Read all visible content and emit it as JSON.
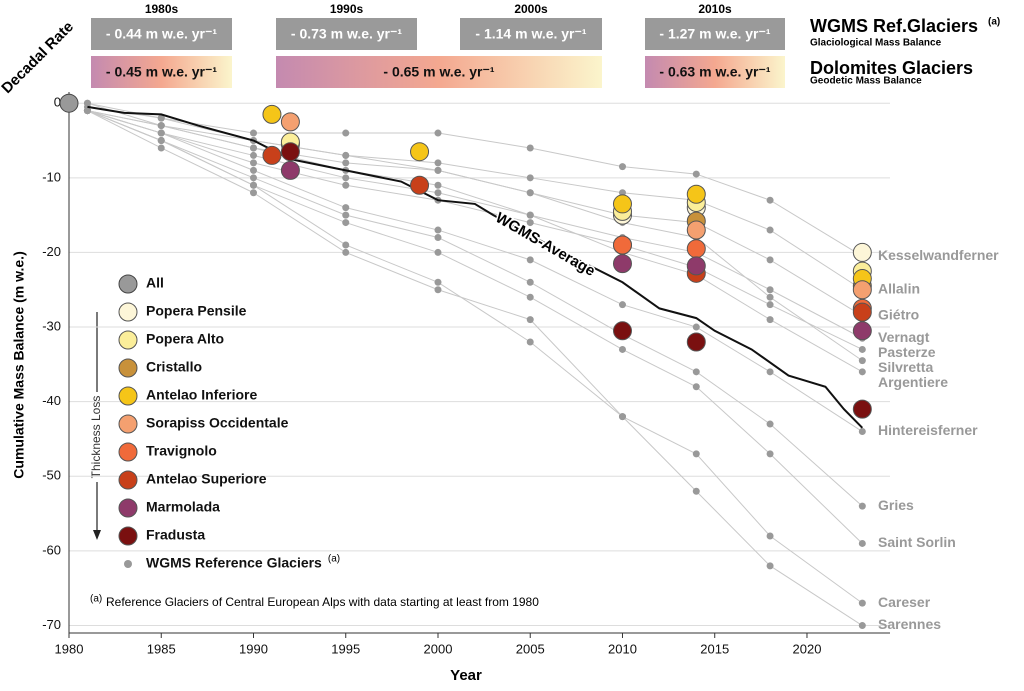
{
  "chart_data": {
    "type": "line",
    "x_label": "Year",
    "y_label": "Cumulative Mass Balance (m w.e.)",
    "xlim": [
      1980,
      2024.5
    ],
    "xticks": [
      1980,
      1985,
      1990,
      1995,
      2000,
      2005,
      2010,
      2015,
      2020
    ],
    "ylim": [
      -71,
      1.5
    ],
    "yticks": [
      0,
      -10,
      -20,
      -30,
      -40,
      -50,
      -60,
      -70
    ],
    "grid": true,
    "x": [
      1981,
      1985,
      1990,
      1995,
      2000,
      2005,
      2010,
      2014,
      2018,
      2023
    ],
    "series": [
      {
        "name": "Kesselwandferner",
        "color": "#999999",
        "values": [
          -0.5,
          -2,
          -4,
          -4,
          -4,
          -6,
          -8.5,
          -9.5,
          -13,
          -20.5
        ]
      },
      {
        "name": "Allalin",
        "color": "#999999",
        "values": [
          0,
          -3,
          -5,
          -7,
          -8,
          -10,
          -12,
          -13,
          -17,
          -25
        ]
      },
      {
        "name": "Giétro",
        "color": "#999999",
        "values": [
          -1,
          -3,
          -6,
          -8,
          -9,
          -12,
          -15,
          -16,
          -21,
          -28.5
        ]
      },
      {
        "name": "Vernagt",
        "color": "#999999",
        "values": [
          -1,
          -4,
          -7,
          -10,
          -12,
          -15,
          -18,
          -20,
          -25,
          -31.5
        ]
      },
      {
        "name": "Pasterze",
        "color": "#999999",
        "values": [
          -1,
          -4,
          -8,
          -11,
          -13,
          -16,
          -19,
          -22,
          -27,
          -33
        ]
      },
      {
        "name": "Silvretta",
        "color": "#999999",
        "values": [
          0,
          -2,
          -5,
          -7,
          -9,
          -12,
          -16,
          -18,
          -26,
          -34.5
        ]
      },
      {
        "name": "Argentiere",
        "color": "#999999",
        "values": [
          -1,
          -3,
          -6,
          -9,
          -11,
          -15,
          -20,
          -23,
          -29,
          -36
        ]
      },
      {
        "name": "Hintereisferner",
        "color": "#999999",
        "values": [
          -1,
          -4,
          -9,
          -14,
          -17,
          -21,
          -27,
          -30,
          -36,
          -44
        ]
      },
      {
        "name": "Gries",
        "color": "#999999",
        "values": [
          -1,
          -5,
          -10,
          -15,
          -18,
          -24,
          -31,
          -36,
          -43,
          -54
        ]
      },
      {
        "name": "Saint Sorlin",
        "color": "#999999",
        "values": [
          -1,
          -5,
          -11,
          -16,
          -20,
          -26,
          -33,
          -38,
          -47,
          -59
        ]
      },
      {
        "name": "Careser",
        "color": "#999999",
        "values": [
          -1,
          -6,
          -12,
          -20,
          -25,
          -29,
          -42,
          -47,
          -58,
          -67
        ]
      },
      {
        "name": "Sarennes",
        "color": "#999999",
        "values": [
          -1,
          -5,
          -11,
          -19,
          -24,
          -32,
          -42,
          -52,
          -62,
          -70
        ]
      }
    ],
    "average": {
      "name": "WGMS-Average",
      "x": [
        1981,
        1983,
        1985,
        1987,
        1990,
        1992,
        1995,
        1998,
        2000,
        2002,
        2003,
        2006,
        2010,
        2012,
        2014,
        2015,
        2017,
        2019,
        2021,
        2022,
        2023
      ],
      "values": [
        -0.5,
        -1.3,
        -1.5,
        -3,
        -5,
        -7.5,
        -9,
        -10.5,
        -13,
        -13.5,
        -15,
        -19,
        -24,
        -27.5,
        -28.8,
        -30.5,
        -33,
        -36.5,
        -38,
        -41,
        -43.5
      ]
    },
    "all": {
      "name": "All",
      "color": "#999999",
      "x": [
        1980
      ],
      "values": [
        0
      ]
    },
    "dolomites": [
      {
        "name": "Popera Pensile",
        "color": "#fdf6d8",
        "x": [
          1992,
          2010,
          2014,
          2023
        ],
        "values": [
          -5.5,
          -15,
          -14,
          -20
        ]
      },
      {
        "name": "Popera Alto",
        "color": "#fbee9a",
        "x": [
          1992,
          2010,
          2014,
          2023
        ],
        "values": [
          -5.2,
          -14.5,
          -13.3,
          -22.5
        ]
      },
      {
        "name": "Cristallo",
        "color": "#c8913a",
        "x": [
          2014,
          2023
        ],
        "values": [
          -15.8,
          -24.5
        ]
      },
      {
        "name": "Antelao Inferiore",
        "color": "#f5c518",
        "x": [
          1991,
          1999,
          2010,
          2014,
          2023
        ],
        "values": [
          -1.5,
          -6.5,
          -13.5,
          -12.2,
          -23.5
        ]
      },
      {
        "name": "Sorapiss Occidentale",
        "color": "#f4a070",
        "x": [
          1992,
          2010,
          2014,
          2023
        ],
        "values": [
          -2.5,
          -19,
          -17,
          -25
        ]
      },
      {
        "name": "Travignolo",
        "color": "#f06a3a",
        "x": [
          2010,
          2014,
          2023
        ],
        "values": [
          -19,
          -19.5,
          -27.5
        ]
      },
      {
        "name": "Antelao Superiore",
        "color": "#c8401a",
        "x": [
          1991,
          1999,
          2014,
          2023
        ],
        "values": [
          -7,
          -11,
          -22.8,
          -28
        ]
      },
      {
        "name": "Marmolada",
        "color": "#8e3a6a",
        "x": [
          1992,
          2010,
          2014,
          2023
        ],
        "values": [
          -9,
          -21.5,
          -21.8,
          -30.5
        ]
      },
      {
        "name": "Fradusta",
        "color": "#7a1010",
        "x": [
          1992,
          2010,
          2014,
          2023
        ],
        "values": [
          -6.5,
          -30.5,
          -32,
          -41
        ]
      }
    ],
    "reference_legend": "WGMS Reference Glaciers",
    "reference_note_mark": "(a)",
    "footnote_mark": "(a)",
    "footnote": "Reference Glaciers of Central European Alps with data starting at least from 1980",
    "thickness_label": "Thickness Loss",
    "rates": {
      "label": "Decadal Rate",
      "decades": [
        "1980s",
        "1990s",
        "2000s",
        "2010s"
      ],
      "wgms_title": "WGMS Ref.Glaciers",
      "wgms_note": "(a)",
      "wgms_subtitle": "Glaciological Mass Balance",
      "wgms": [
        "- 0.44 m w.e. yr⁻¹",
        "- 0.73 m w.e. yr⁻¹",
        "- 1.14 m w.e. yr⁻¹",
        "- 1.27 m w.e. yr⁻¹"
      ],
      "dolomites_title": "Dolomites Glaciers",
      "dolomites_subtitle": "Geodetic Mass Balance",
      "dolomites": [
        "- 0.45 m w.e. yr⁻¹",
        "- 0.65 m w.e. yr⁻¹",
        "- 0.63 m w.e. yr⁻¹"
      ]
    }
  }
}
